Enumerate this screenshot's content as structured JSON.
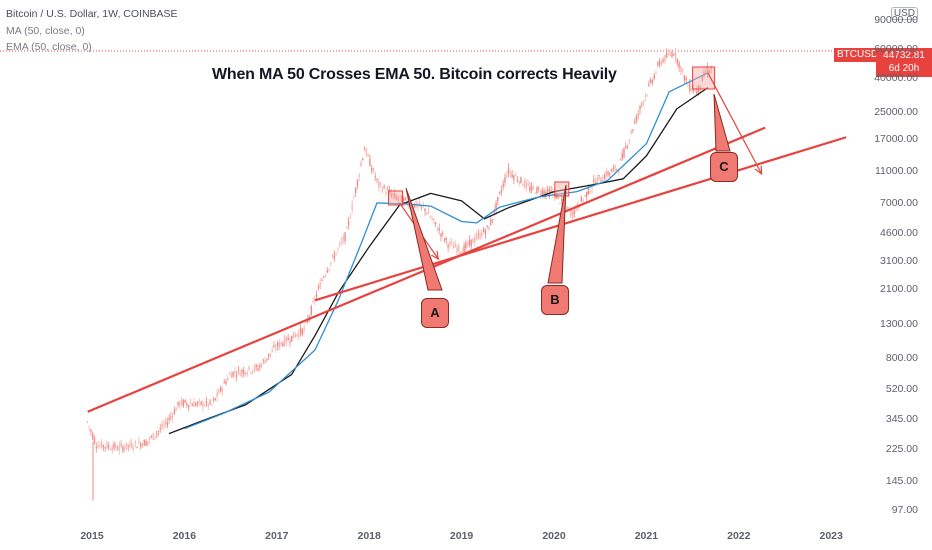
{
  "header": {
    "symbol_line": "Bitcoin / U.S. Dollar, 1W, COINBASE",
    "ma_line": "MA (50, close, 0)",
    "ema_line": "EMA (50, close, 0)"
  },
  "headline": "When MA 50 Crosses EMA 50. Bitcoin corrects Heavily",
  "price_tag": {
    "symbol": "BTCUSD",
    "price": "44732.81",
    "countdown": "6d 20h"
  },
  "currency_badge": "USD",
  "callouts": [
    "A",
    "B",
    "C"
  ],
  "colors": {
    "candle": "#f6a6a1",
    "ema": "#2f8fd6",
    "ma": "#1a1a1a",
    "trend": "#e8423f",
    "price_line": "#e8423f"
  },
  "chart_data": {
    "type": "line",
    "scale": "log",
    "x_ticks": [
      "2015",
      "2016",
      "2017",
      "2018",
      "2019",
      "2020",
      "2021",
      "2022",
      "2023"
    ],
    "y_ticks": [
      "90000.00",
      "60000.00",
      "40000.00",
      "25000.00",
      "17000.00",
      "11000.00",
      "7000.00",
      "4600.00",
      "3100.00",
      "2100.00",
      "1300.00",
      "800.00",
      "520.00",
      "345.00",
      "225.00",
      "145.00",
      "97.00"
    ],
    "ylim": [
      90,
      95000
    ],
    "last_price": 44732.81,
    "series": [
      {
        "name": "MA (50, close, 0)",
        "points": [
          [
            "2015-11-01",
            280
          ],
          [
            "2016-03-01",
            330
          ],
          [
            "2016-09-01",
            420
          ],
          [
            "2017-03-01",
            640
          ],
          [
            "2017-06-01",
            1100
          ],
          [
            "2017-09-01",
            2000
          ],
          [
            "2018-01-01",
            3800
          ],
          [
            "2018-05-01",
            6800
          ],
          [
            "2018-09-01",
            8000
          ],
          [
            "2019-01-01",
            7200
          ],
          [
            "2019-04-01",
            5600
          ],
          [
            "2019-07-01",
            6500
          ],
          [
            "2020-01-01",
            8200
          ],
          [
            "2020-06-01",
            9000
          ],
          [
            "2020-10-01",
            9800
          ],
          [
            "2021-01-01",
            13500
          ],
          [
            "2021-05-01",
            26000
          ],
          [
            "2021-09-01",
            35000
          ]
        ]
      },
      {
        "name": "EMA (50, close, 0)",
        "points": [
          [
            "2016-01-01",
            300
          ],
          [
            "2016-06-01",
            370
          ],
          [
            "2016-12-01",
            500
          ],
          [
            "2017-06-01",
            900
          ],
          [
            "2017-09-01",
            1800
          ],
          [
            "2017-12-01",
            4000
          ],
          [
            "2018-02-01",
            7000
          ],
          [
            "2018-06-01",
            6900
          ],
          [
            "2018-09-01",
            6700
          ],
          [
            "2019-01-01",
            5400
          ],
          [
            "2019-03-01",
            5300
          ],
          [
            "2019-06-01",
            6600
          ],
          [
            "2019-11-01",
            7600
          ],
          [
            "2020-04-01",
            8200
          ],
          [
            "2020-08-01",
            9600
          ],
          [
            "2021-01-01",
            16000
          ],
          [
            "2021-04-01",
            33000
          ],
          [
            "2021-09-01",
            43000
          ]
        ]
      }
    ],
    "trendlines": [
      {
        "points": [
          [
            "2014-12-15",
            380
          ],
          [
            "2022-04-15",
            20000
          ]
        ]
      },
      {
        "points": [
          [
            "2017-06-01",
            1800
          ],
          [
            "2023-03-01",
            17500
          ]
        ]
      }
    ],
    "cross_markers": [
      [
        "2018-04-15",
        7500
      ],
      [
        "2020-02-01",
        8500
      ],
      [
        "2021-08-15",
        40000
      ]
    ],
    "arrows": [
      {
        "from": [
          "2018-05-01",
          7000
        ],
        "to": [
          "2018-10-01",
          3200
        ]
      },
      {
        "from": [
          "2021-09-01",
          43000
        ],
        "to": [
          "2022-04-01",
          10500
        ]
      }
    ]
  }
}
